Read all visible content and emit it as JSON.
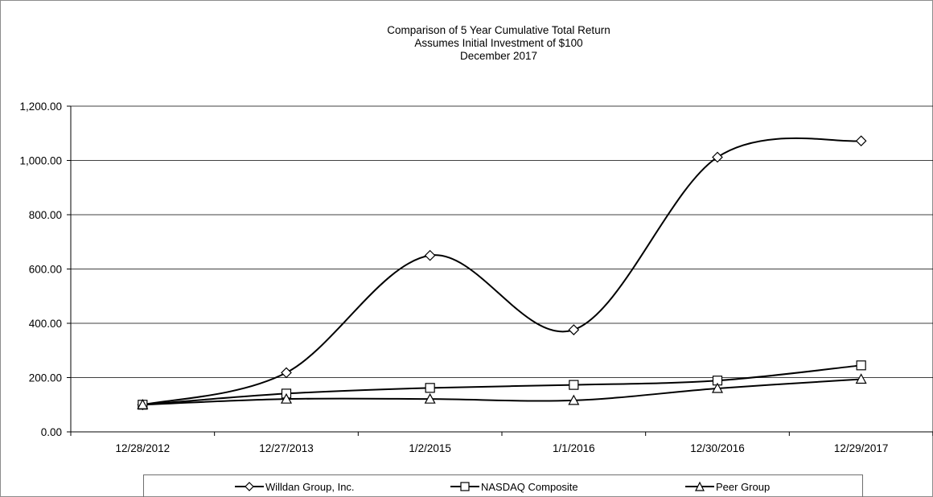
{
  "chart_data": {
    "type": "line",
    "title": "Comparison of 5 Year Cumulative Total Return",
    "subtitle_lines": [
      "Assumes Initial Investment of $100",
      "December 2017"
    ],
    "categories": [
      "12/28/2012",
      "12/27/2013",
      "1/2/2015",
      "1/1/2016",
      "12/30/2016",
      "12/29/2017"
    ],
    "ylim": [
      0,
      1200
    ],
    "yticks": [
      0,
      200,
      400,
      600,
      800,
      1000,
      1200
    ],
    "ytick_labels": [
      "0.00",
      "200.00",
      "400.00",
      "600.00",
      "800.00",
      "1,000.00",
      "1,200.00"
    ],
    "grid": true,
    "legend_position": "bottom",
    "series": [
      {
        "name": "Willdan Group, Inc.",
        "marker": "diamond",
        "values": [
          100,
          218,
          650,
          376,
          1012,
          1072
        ]
      },
      {
        "name": "NASDAQ Composite",
        "marker": "square",
        "values": [
          100,
          141,
          162,
          173,
          189,
          245
        ]
      },
      {
        "name": "Peer Group",
        "marker": "triangle",
        "values": [
          100,
          121,
          121,
          116,
          160,
          194
        ]
      }
    ]
  }
}
